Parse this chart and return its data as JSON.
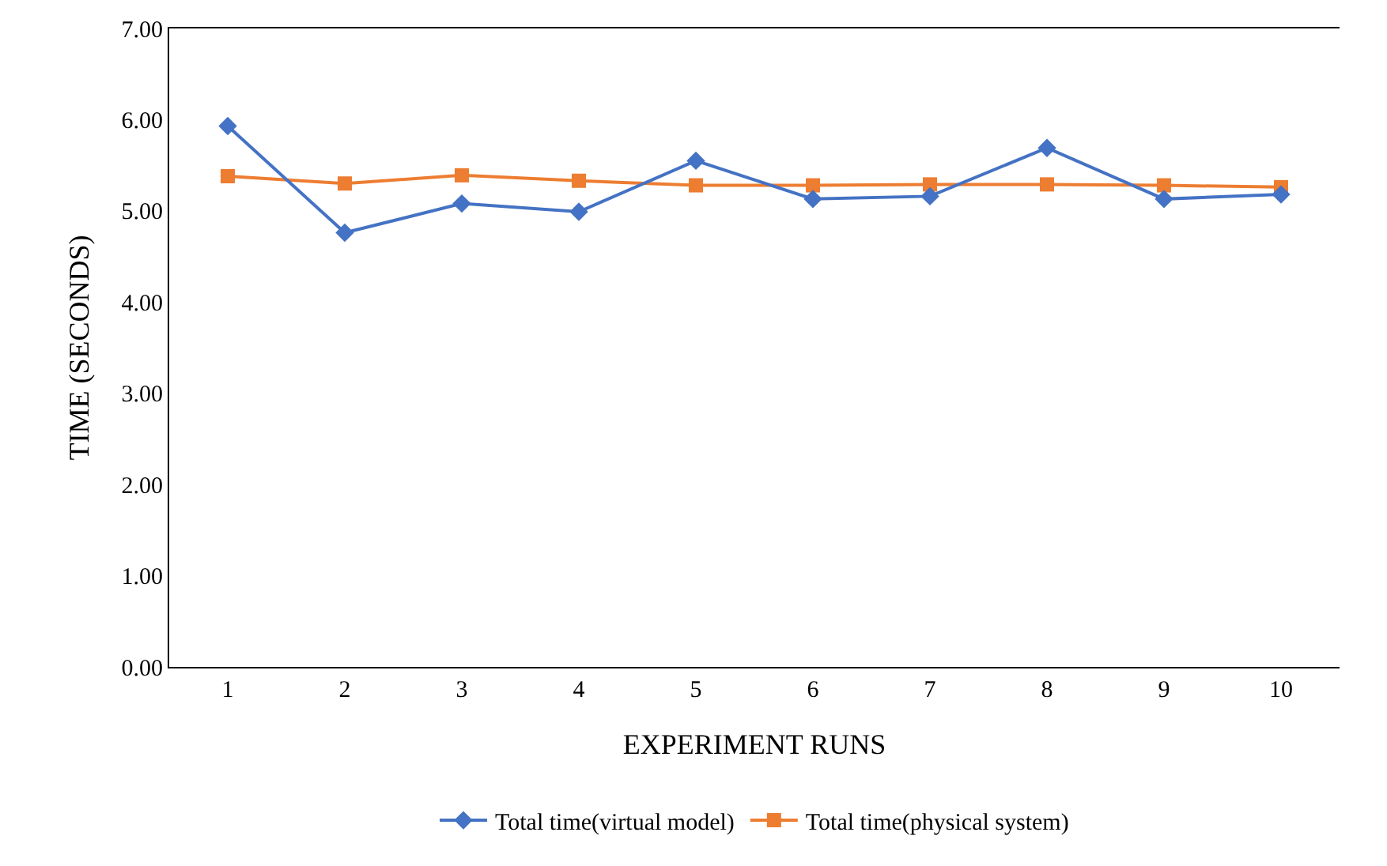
{
  "chart_data": {
    "type": "line",
    "xlabel": "EXPERIMENT RUNS",
    "ylabel": "TIME (SECONDS)",
    "categories": [
      "1",
      "2",
      "3",
      "4",
      "5",
      "6",
      "7",
      "8",
      "9",
      "10"
    ],
    "series": [
      {
        "name": "Total time(virtual model)",
        "color": "#4472c4",
        "marker": "diamond",
        "values": [
          5.93,
          4.76,
          5.08,
          4.99,
          5.55,
          5.13,
          5.16,
          5.69,
          5.13,
          5.18
        ]
      },
      {
        "name": "Total time(physical system)",
        "color": "#ed7d31",
        "marker": "square",
        "values": [
          5.38,
          5.3,
          5.39,
          5.33,
          5.28,
          5.28,
          5.29,
          5.29,
          5.28,
          5.26
        ]
      }
    ],
    "ylim": [
      0,
      7
    ],
    "yticks": [
      {
        "value": 0,
        "label": "0.00"
      },
      {
        "value": 1,
        "label": "1.00"
      },
      {
        "value": 2,
        "label": "2.00"
      },
      {
        "value": 3,
        "label": "3.00"
      },
      {
        "value": 4,
        "label": "4.00"
      },
      {
        "value": 5,
        "label": "5.00"
      },
      {
        "value": 6,
        "label": "6.00"
      },
      {
        "value": 7,
        "label": "7.00"
      }
    ],
    "grid": false,
    "legend": "bottom"
  }
}
